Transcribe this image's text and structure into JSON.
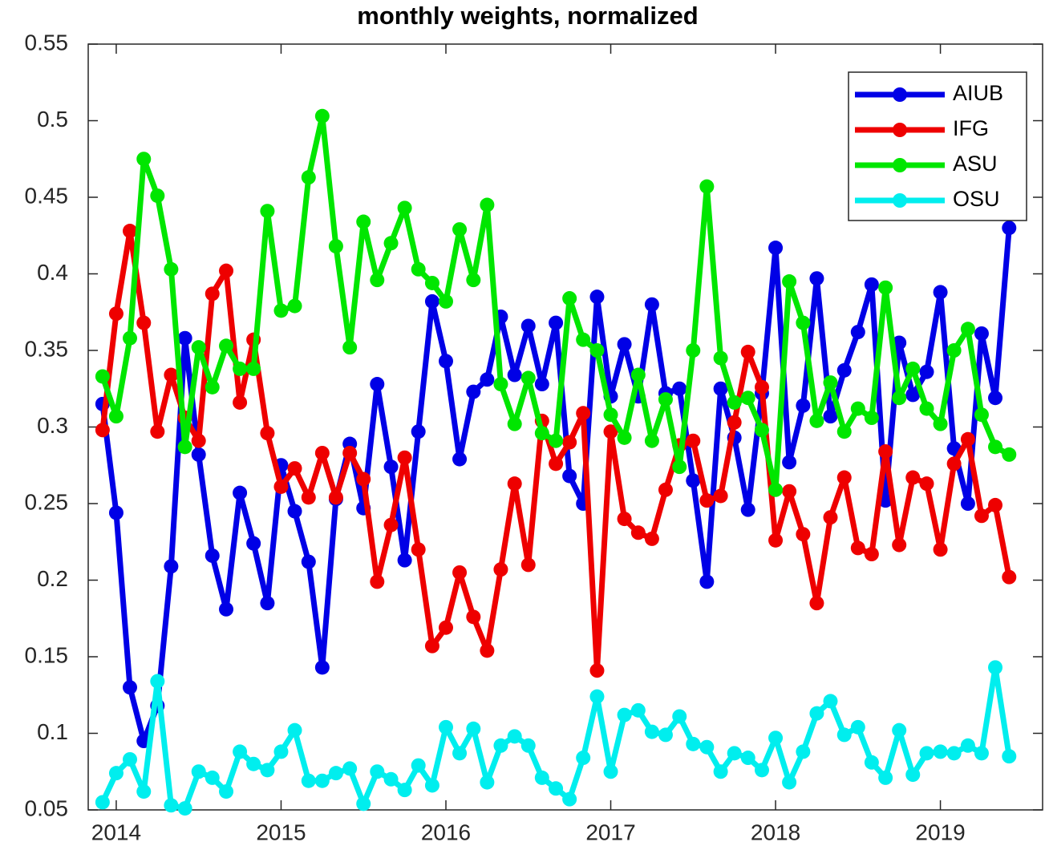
{
  "chart_data": {
    "type": "line",
    "title": "monthly weights, normalized",
    "x": [
      2013.917,
      2014.0,
      2014.083,
      2014.167,
      2014.25,
      2014.333,
      2014.417,
      2014.5,
      2014.583,
      2014.667,
      2014.75,
      2014.833,
      2014.917,
      2015.0,
      2015.083,
      2015.167,
      2015.25,
      2015.333,
      2015.417,
      2015.5,
      2015.583,
      2015.667,
      2015.75,
      2015.833,
      2015.917,
      2016.0,
      2016.083,
      2016.167,
      2016.25,
      2016.333,
      2016.417,
      2016.5,
      2016.583,
      2016.667,
      2016.75,
      2016.833,
      2016.917,
      2017.0,
      2017.083,
      2017.167,
      2017.25,
      2017.333,
      2017.417,
      2017.5,
      2017.583,
      2017.667,
      2017.75,
      2017.833,
      2017.917,
      2018.0,
      2018.083,
      2018.167,
      2018.25,
      2018.333,
      2018.417,
      2018.5,
      2018.583,
      2018.667,
      2018.75,
      2018.833,
      2018.917,
      2019.0,
      2019.083,
      2019.167,
      2019.25,
      2019.333,
      2019.417
    ],
    "series": [
      {
        "name": "AIUB",
        "color": "#0000e6",
        "values": [
          0.315,
          0.244,
          0.13,
          0.095,
          0.118,
          0.209,
          0.358,
          0.282,
          0.216,
          0.181,
          0.257,
          0.224,
          0.185,
          0.275,
          0.245,
          0.212,
          0.143,
          0.253,
          0.289,
          0.247,
          0.328,
          0.274,
          0.213,
          0.297,
          0.382,
          0.343,
          0.279,
          0.323,
          0.331,
          0.372,
          0.334,
          0.366,
          0.328,
          0.368,
          0.268,
          0.25,
          0.385,
          0.32,
          0.354,
          0.32,
          0.38,
          0.322,
          0.325,
          0.265,
          0.199,
          0.325,
          0.293,
          0.246,
          0.322,
          0.417,
          0.277,
          0.314,
          0.397,
          0.307,
          0.337,
          0.362,
          0.393,
          0.252,
          0.355,
          0.321,
          0.336,
          0.388,
          0.286,
          0.25,
          0.361,
          0.319,
          0.43
        ]
      },
      {
        "name": "IFG",
        "color": "#ee0000",
        "values": [
          0.298,
          0.374,
          0.428,
          0.368,
          0.297,
          0.334,
          0.306,
          0.291,
          0.387,
          0.402,
          0.316,
          0.357,
          0.296,
          0.261,
          0.273,
          0.254,
          0.283,
          0.254,
          0.283,
          0.266,
          0.199,
          0.236,
          0.28,
          0.22,
          0.157,
          0.169,
          0.205,
          0.176,
          0.154,
          0.207,
          0.263,
          0.21,
          0.304,
          0.276,
          0.29,
          0.309,
          0.141,
          0.297,
          0.24,
          0.231,
          0.227,
          0.259,
          0.288,
          0.291,
          0.252,
          0.255,
          0.303,
          0.349,
          0.326,
          0.226,
          0.258,
          0.23,
          0.185,
          0.241,
          0.267,
          0.221,
          0.217,
          0.284,
          0.223,
          0.267,
          0.263,
          0.22,
          0.276,
          0.292,
          0.242,
          0.249,
          0.202
        ]
      },
      {
        "name": "ASU",
        "color": "#00e600",
        "values": [
          0.333,
          0.307,
          0.358,
          0.475,
          0.451,
          0.403,
          0.287,
          0.352,
          0.326,
          0.353,
          0.338,
          0.338,
          0.441,
          0.376,
          0.379,
          0.463,
          0.503,
          0.418,
          0.352,
          0.434,
          0.396,
          0.42,
          0.443,
          0.403,
          0.394,
          0.382,
          0.429,
          0.396,
          0.445,
          0.328,
          0.302,
          0.332,
          0.296,
          0.291,
          0.384,
          0.357,
          0.35,
          0.308,
          0.293,
          0.334,
          0.291,
          0.318,
          0.274,
          0.35,
          0.457,
          0.345,
          0.316,
          0.319,
          0.298,
          0.259,
          0.395,
          0.368,
          0.304,
          0.329,
          0.297,
          0.312,
          0.306,
          0.391,
          0.319,
          0.338,
          0.312,
          0.302,
          0.35,
          0.364,
          0.308,
          0.287,
          0.282
        ]
      },
      {
        "name": "OSU",
        "color": "#00eeee",
        "values": [
          0.055,
          0.074,
          0.083,
          0.062,
          0.134,
          0.053,
          0.051,
          0.075,
          0.071,
          0.062,
          0.088,
          0.08,
          0.076,
          0.088,
          0.102,
          0.069,
          0.069,
          0.074,
          0.077,
          0.054,
          0.075,
          0.07,
          0.063,
          0.079,
          0.066,
          0.104,
          0.087,
          0.103,
          0.068,
          0.092,
          0.098,
          0.092,
          0.071,
          0.064,
          0.057,
          0.084,
          0.124,
          0.075,
          0.112,
          0.115,
          0.101,
          0.099,
          0.111,
          0.093,
          0.091,
          0.075,
          0.087,
          0.084,
          0.076,
          0.097,
          0.068,
          0.088,
          0.113,
          0.121,
          0.099,
          0.104,
          0.081,
          0.071,
          0.102,
          0.073,
          0.087,
          0.088,
          0.087,
          0.092,
          0.087,
          0.143,
          0.085
        ]
      }
    ],
    "xlim": [
      2013.83,
      2019.62
    ],
    "xticks": [
      2014,
      2015,
      2016,
      2017,
      2018,
      2019
    ],
    "ylim": [
      0.05,
      0.55
    ],
    "yticks": [
      0.05,
      0.1,
      0.15,
      0.2,
      0.25,
      0.3,
      0.35,
      0.4,
      0.45,
      0.5,
      0.55
    ],
    "grid": false,
    "legend": "northeast"
  }
}
